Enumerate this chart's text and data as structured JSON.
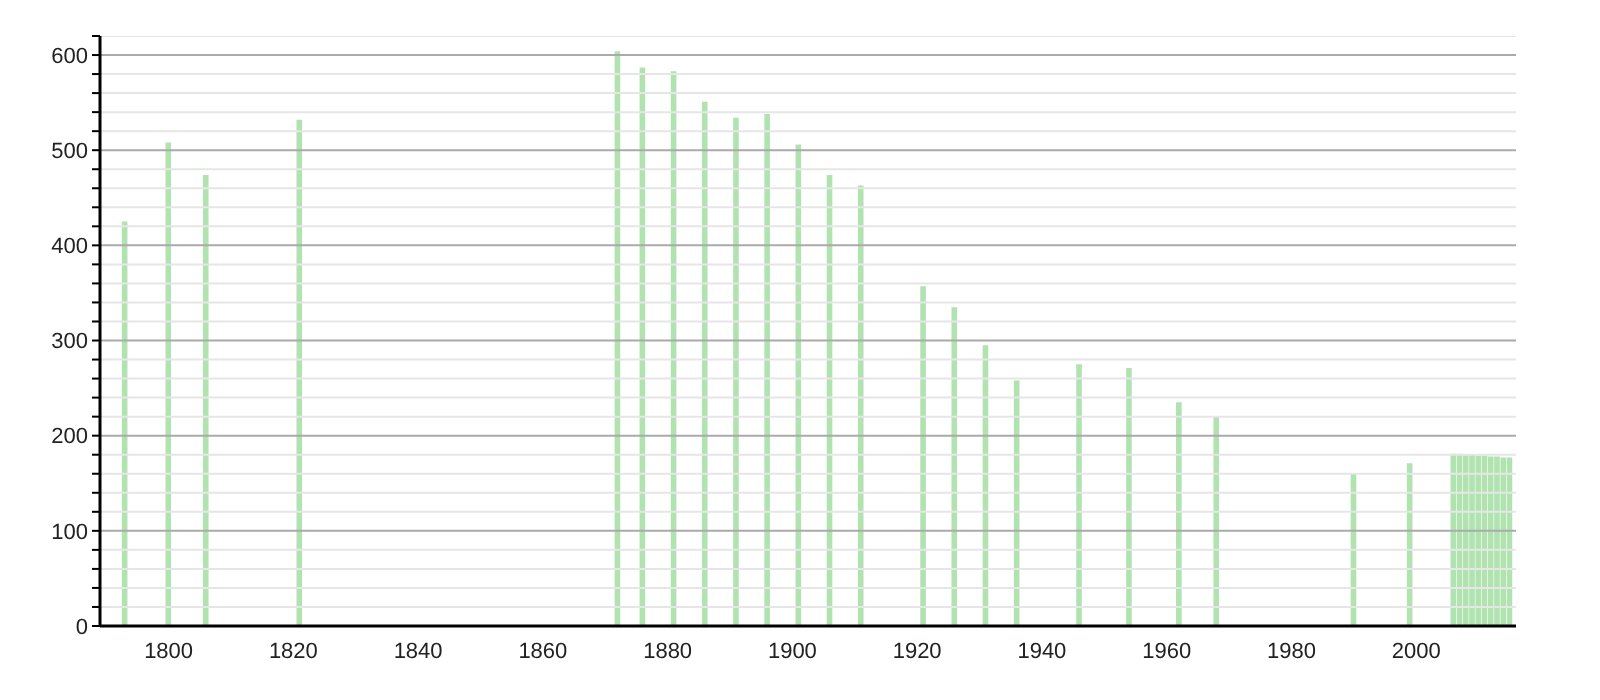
{
  "chart_data": {
    "type": "bar",
    "x": [
      1793,
      1800,
      1806,
      1821,
      1872,
      1876,
      1881,
      1886,
      1891,
      1896,
      1901,
      1906,
      1911,
      1921,
      1926,
      1931,
      1936,
      1946,
      1954,
      1962,
      1968,
      1990,
      1999,
      2006,
      2007,
      2008,
      2009,
      2010,
      2011,
      2012,
      2013,
      2014,
      2015
    ],
    "values": [
      425,
      508,
      474,
      532,
      604,
      587,
      583,
      551,
      534,
      538,
      506,
      474,
      463,
      357,
      335,
      295,
      258,
      275,
      271,
      235,
      220,
      160,
      171,
      181,
      181,
      180,
      180,
      179,
      179,
      178,
      178,
      177,
      177
    ],
    "color": "#b0e3b0",
    "xlim": [
      1789,
      2016
    ],
    "xticks": [
      1800,
      1820,
      1840,
      1860,
      1880,
      1900,
      1920,
      1940,
      1960,
      1980,
      2000
    ],
    "ylim": [
      0,
      620
    ],
    "yticks": [
      0,
      {
        "value": 20,
        "label": null
      },
      {
        "value": 40,
        "label": null
      },
      {
        "value": 60,
        "label": null
      },
      {
        "value": 80,
        "label": null
      },
      100,
      {
        "value": 120,
        "label": null
      },
      {
        "value": 140,
        "label": null
      },
      {
        "value": 160,
        "label": null
      },
      {
        "value": 180,
        "label": null
      },
      200,
      {
        "value": 220,
        "label": null
      },
      {
        "value": 240,
        "label": null
      },
      {
        "value": 260,
        "label": null
      },
      {
        "value": 280,
        "label": null
      },
      300,
      {
        "value": 320,
        "label": null
      },
      {
        "value": 340,
        "label": null
      },
      {
        "value": 360,
        "label": null
      },
      {
        "value": 380,
        "label": null
      },
      400,
      {
        "value": 420,
        "label": null
      },
      {
        "value": 440,
        "label": null
      },
      {
        "value": 460,
        "label": null
      },
      {
        "value": 480,
        "label": null
      },
      500,
      {
        "value": 520,
        "label": null
      },
      {
        "value": 540,
        "label": null
      },
      {
        "value": 560,
        "label": null
      },
      {
        "value": 580,
        "label": null
      },
      600,
      {
        "value": 620,
        "label": null
      }
    ],
    "grid": "y"
  }
}
